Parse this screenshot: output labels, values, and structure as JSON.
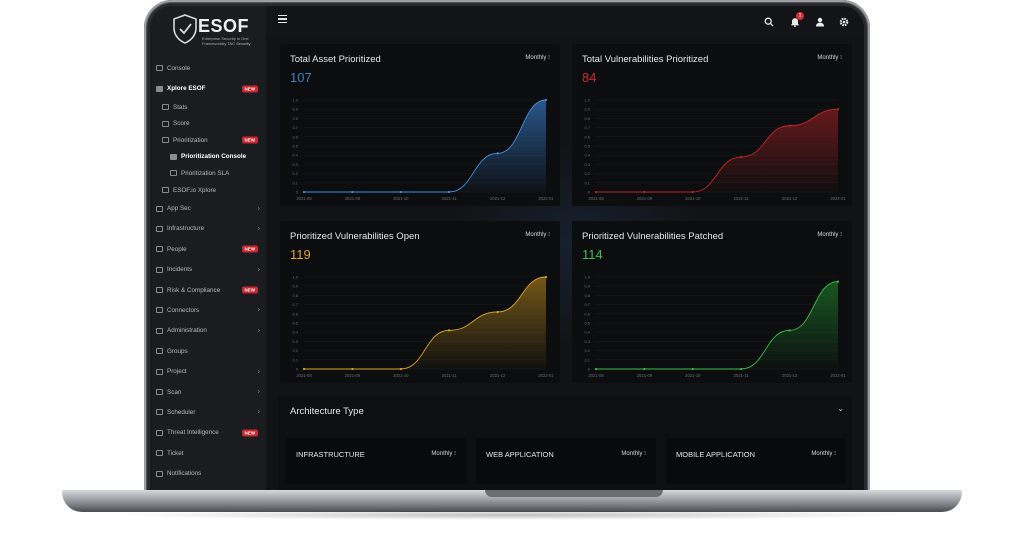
{
  "brand": {
    "name": "ESOF",
    "subtitle": "Enterprise Security in One Framework",
    "by": "by TAC Security"
  },
  "sidebar": {
    "items": [
      {
        "label": "Console",
        "level": 0,
        "active": false,
        "badge": "",
        "chevron": false
      },
      {
        "label": "Xplore ESOF",
        "level": 0,
        "active": true,
        "badge": "NEW",
        "chevron": false
      },
      {
        "label": "Stats",
        "level": 1,
        "active": false,
        "badge": "",
        "chevron": false
      },
      {
        "label": "Score",
        "level": 1,
        "active": false,
        "badge": "",
        "chevron": false
      },
      {
        "label": "Prioritization",
        "level": 1,
        "active": false,
        "badge": "NEW",
        "chevron": false
      },
      {
        "label": "Prioritization Console",
        "level": 2,
        "active": true,
        "badge": "",
        "chevron": false
      },
      {
        "label": "Prioritization SLA",
        "level": 2,
        "active": false,
        "badge": "",
        "chevron": false
      },
      {
        "label": "ESOF.io Xplore",
        "level": 1,
        "active": false,
        "badge": "",
        "chevron": false
      },
      {
        "label": "App Sec",
        "level": 0,
        "active": false,
        "badge": "",
        "chevron": true
      },
      {
        "label": "Infrastructure",
        "level": 0,
        "active": false,
        "badge": "",
        "chevron": true
      },
      {
        "label": "People",
        "level": 0,
        "active": false,
        "badge": "NEW",
        "chevron": false
      },
      {
        "label": "Incidents",
        "level": 0,
        "active": false,
        "badge": "",
        "chevron": true
      },
      {
        "label": "Risk & Compliance",
        "level": 0,
        "active": false,
        "badge": "NEW",
        "chevron": false
      },
      {
        "label": "Connectors",
        "level": 0,
        "active": false,
        "badge": "",
        "chevron": true
      },
      {
        "label": "Administration",
        "level": 0,
        "active": false,
        "badge": "",
        "chevron": true
      },
      {
        "label": "Groups",
        "level": 0,
        "active": false,
        "badge": "",
        "chevron": false
      },
      {
        "label": "Project",
        "level": 0,
        "active": false,
        "badge": "",
        "chevron": true
      },
      {
        "label": "Scan",
        "level": 0,
        "active": false,
        "badge": "",
        "chevron": true
      },
      {
        "label": "Scheduler",
        "level": 0,
        "active": false,
        "badge": "",
        "chevron": true
      },
      {
        "label": "Threat Intelligence",
        "level": 0,
        "active": false,
        "badge": "NEW",
        "chevron": false
      },
      {
        "label": "Ticket",
        "level": 0,
        "active": false,
        "badge": "",
        "chevron": false
      },
      {
        "label": "Notifications",
        "level": 0,
        "active": false,
        "badge": "",
        "chevron": false
      }
    ]
  },
  "topbar": {
    "notification_count": "1",
    "icons": [
      "search-icon",
      "bell-icon",
      "user-icon",
      "gear-icon"
    ]
  },
  "cards": [
    {
      "title": "Total Asset Prioritized",
      "value": "107",
      "value_color": "#3b82c4",
      "filter": "Monthly ⁝",
      "line_color": "#4a90d9",
      "fill_color": "#2a5a90"
    },
    {
      "title": "Total Vulnerabilities Prioritized",
      "value": "84",
      "value_color": "#d0282c",
      "filter": "Monthly ⁝",
      "line_color": "#c0282c",
      "fill_color": "#6a1a1c"
    },
    {
      "title": "Prioritized Vulnerabilities Open",
      "value": "119",
      "value_color": "#e0a628",
      "filter": "Monthly ⁝",
      "line_color": "#e0a628",
      "fill_color": "#7a5a18"
    },
    {
      "title": "Prioritized Vulnerabilities Patched",
      "value": "114",
      "value_color": "#3fbf4a",
      "filter": "Monthly ⁝",
      "line_color": "#3fbf4a",
      "fill_color": "#1a5a22"
    }
  ],
  "chart_data": [
    {
      "type": "area",
      "x": [
        "2021-08",
        "2021-09",
        "2021-10",
        "2021-11",
        "2021-12",
        "2022-01"
      ],
      "series": [
        {
          "values": [
            0,
            0,
            0,
            0,
            0.42,
            1.0
          ]
        }
      ],
      "ylim": [
        0,
        1.0
      ],
      "yticks": [
        "0",
        "0.1",
        "0.2",
        "0.3",
        "0.4",
        "0.5",
        "0.6",
        "0.7",
        "0.8",
        "0.9",
        "1.0"
      ]
    },
    {
      "type": "area",
      "x": [
        "2021-08",
        "2021-09",
        "2021-10",
        "2021-11",
        "2021-12",
        "2022-01"
      ],
      "series": [
        {
          "values": [
            0,
            0,
            0,
            0.38,
            0.72,
            0.9
          ]
        }
      ],
      "ylim": [
        0,
        1.0
      ],
      "yticks": [
        "0",
        "0.1",
        "0.2",
        "0.3",
        "0.4",
        "0.5",
        "0.6",
        "0.7",
        "0.8",
        "0.9",
        "1.0"
      ]
    },
    {
      "type": "area",
      "x": [
        "2021-08",
        "2021-09",
        "2021-10",
        "2021-11",
        "2021-12",
        "2022-01"
      ],
      "series": [
        {
          "values": [
            0,
            0,
            0,
            0.42,
            0.62,
            1.0
          ]
        }
      ],
      "ylim": [
        0,
        1.0
      ],
      "yticks": [
        "0",
        "0.1",
        "0.2",
        "0.3",
        "0.4",
        "0.5",
        "0.6",
        "0.7",
        "0.8",
        "0.9",
        "1.0"
      ]
    },
    {
      "type": "area",
      "x": [
        "2021-08",
        "2021-09",
        "2021-10",
        "2021-11",
        "2021-12",
        "2022-01"
      ],
      "series": [
        {
          "values": [
            0,
            0,
            0,
            0,
            0.42,
            0.95
          ]
        }
      ],
      "ylim": [
        0,
        1.0
      ],
      "yticks": [
        "0",
        "0.1",
        "0.2",
        "0.3",
        "0.4",
        "0.5",
        "0.6",
        "0.7",
        "0.8",
        "0.9",
        "1.0"
      ]
    }
  ],
  "architecture": {
    "title": "Architecture Type",
    "cards": [
      {
        "title": "INFRASTRUCTURE",
        "filter": "Monthly ⁝"
      },
      {
        "title": "WEB APPLICATION",
        "filter": "Monthly ⁝"
      },
      {
        "title": "MOBILE APPLICATION",
        "filter": "Monthly ⁝"
      }
    ]
  }
}
